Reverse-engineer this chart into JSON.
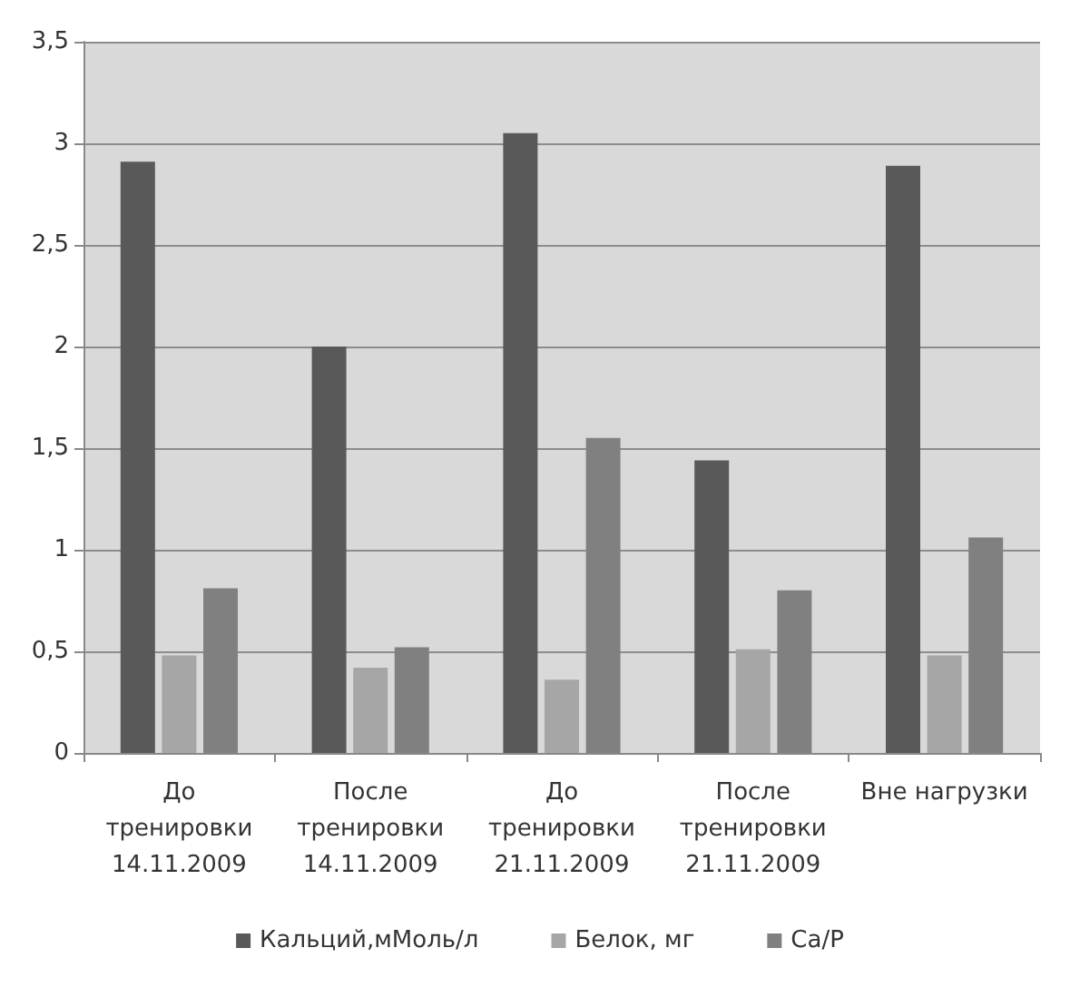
{
  "chart_data": {
    "type": "bar",
    "categories": [
      "До\nтренировки\n14.11.2009",
      "После\nтренировки\n14.11.2009",
      "До\nтренировки\n21.11.2009",
      "После\nтренировки\n21.11.2009",
      "Вне нагрузки"
    ],
    "series": [
      {
        "name": "Кальций,мМоль/л",
        "color": "#595959",
        "values": [
          2.91,
          2.0,
          3.05,
          1.44,
          2.89
        ]
      },
      {
        "name": "Белок, мг",
        "color": "#a6a6a6",
        "values": [
          0.48,
          0.42,
          0.36,
          0.51,
          0.48
        ]
      },
      {
        "name": "Ca/P",
        "color": "#808080",
        "values": [
          0.81,
          0.52,
          1.55,
          0.8,
          1.06
        ]
      }
    ],
    "ylim": [
      0,
      3.5
    ],
    "yticks": [
      0,
      {
        "value": 0.5,
        "label": "0,5"
      },
      1,
      {
        "value": 1.5,
        "label": "1,5"
      },
      2,
      {
        "value": 2.5,
        "label": "2,5"
      },
      3,
      {
        "value": 3.5,
        "label": "3,5"
      }
    ],
    "grid": "y",
    "legend": "bottom"
  }
}
